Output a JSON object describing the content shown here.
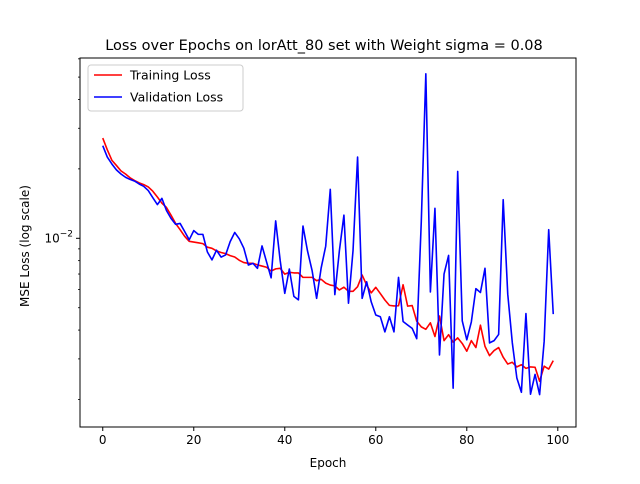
{
  "chart_data": {
    "type": "line",
    "title": "Loss over Epochs on lorAtt_80 set with Weight sigma = 0.08",
    "xlabel": "Epoch",
    "ylabel": "MSE Loss (log scale)",
    "xlim": [
      -5,
      104
    ],
    "ylim": [
      0.00152,
      0.0605
    ],
    "yscale": "log",
    "xticks": [
      0,
      20,
      40,
      60,
      80,
      100
    ],
    "yticks": [
      {
        "value": 0.01,
        "label": "10^-2"
      }
    ],
    "grid": false,
    "legend": {
      "placement": "top-left"
    },
    "x": [
      0,
      1,
      2,
      3,
      4,
      5,
      6,
      7,
      8,
      9,
      10,
      11,
      12,
      13,
      14,
      15,
      16,
      17,
      18,
      19,
      20,
      21,
      22,
      23,
      24,
      25,
      26,
      27,
      28,
      29,
      30,
      31,
      32,
      33,
      34,
      35,
      36,
      37,
      38,
      39,
      40,
      41,
      42,
      43,
      44,
      45,
      46,
      47,
      48,
      49,
      50,
      51,
      52,
      53,
      54,
      55,
      56,
      57,
      58,
      59,
      60,
      61,
      62,
      63,
      64,
      65,
      66,
      67,
      68,
      69,
      70,
      71,
      72,
      73,
      74,
      75,
      76,
      77,
      78,
      79,
      80,
      81,
      82,
      83,
      84,
      85,
      86,
      87,
      88,
      89,
      90,
      91,
      92,
      93,
      94,
      95,
      96,
      97,
      98,
      99
    ],
    "series": [
      {
        "name": "Training Loss",
        "color": "#ff0000",
        "values": [
          0.0272,
          0.0242,
          0.0218,
          0.0207,
          0.0196,
          0.019,
          0.0183,
          0.0178,
          0.0174,
          0.0171,
          0.0167,
          0.016,
          0.0151,
          0.0142,
          0.0136,
          0.0126,
          0.0116,
          0.0109,
          0.0102,
          0.0097,
          0.00963,
          0.00956,
          0.00948,
          0.00915,
          0.00905,
          0.00882,
          0.00868,
          0.00858,
          0.00841,
          0.0083,
          0.00803,
          0.00785,
          0.00779,
          0.00779,
          0.00767,
          0.00758,
          0.00749,
          0.00721,
          0.00737,
          0.00741,
          0.00699,
          0.00712,
          0.00708,
          0.00708,
          0.00677,
          0.00677,
          0.00677,
          0.00655,
          0.00664,
          0.00639,
          0.00627,
          0.00622,
          0.00597,
          0.00614,
          0.00589,
          0.00589,
          0.00617,
          0.00693,
          0.00627,
          0.0058,
          0.00613,
          0.00576,
          0.0054,
          0.00512,
          0.00509,
          0.0051,
          0.00629,
          0.00508,
          0.00511,
          0.00437,
          0.00413,
          0.00403,
          0.0043,
          0.00375,
          0.0046,
          0.0036,
          0.00382,
          0.00355,
          0.0037,
          0.0035,
          0.00324,
          0.0036,
          0.00336,
          0.0042,
          0.0034,
          0.0031,
          0.00326,
          0.00336,
          0.00305,
          0.00285,
          0.0029,
          0.00277,
          0.00283,
          0.00273,
          0.00277,
          0.00276,
          0.0024,
          0.00279,
          0.00271,
          0.00295
        ]
      },
      {
        "name": "Validation Loss",
        "color": "#0000ff",
        "values": [
          0.0252,
          0.0225,
          0.021,
          0.0198,
          0.019,
          0.0184,
          0.018,
          0.0177,
          0.0172,
          0.0168,
          0.0161,
          0.015,
          0.014,
          0.0149,
          0.0132,
          0.0122,
          0.0115,
          0.0116,
          0.0107,
          0.00985,
          0.0108,
          0.0104,
          0.0104,
          0.00872,
          0.00806,
          0.00888,
          0.00829,
          0.00847,
          0.00967,
          0.0106,
          0.00995,
          0.00906,
          0.00766,
          0.00779,
          0.00741,
          0.00927,
          0.0079,
          0.00674,
          0.0119,
          0.00798,
          0.00577,
          0.00736,
          0.0056,
          0.00541,
          0.0113,
          0.00881,
          0.00726,
          0.00549,
          0.00744,
          0.00925,
          0.0163,
          0.0057,
          0.00883,
          0.0126,
          0.00523,
          0.00885,
          0.0225,
          0.00549,
          0.00648,
          0.0053,
          0.00465,
          0.00457,
          0.00393,
          0.00457,
          0.00393,
          0.00677,
          0.00436,
          0.00421,
          0.00407,
          0.00367,
          0.0118,
          0.0517,
          0.00585,
          0.0135,
          0.00312,
          0.007,
          0.00843,
          0.00224,
          0.0195,
          0.00439,
          0.00363,
          0.00434,
          0.00605,
          0.00582,
          0.00741,
          0.00352,
          0.0036,
          0.00383,
          0.0147,
          0.00573,
          0.00353,
          0.00248,
          0.00215,
          0.00472,
          0.00211,
          0.00257,
          0.0021,
          0.00357,
          0.0109,
          0.00469
        ]
      }
    ]
  }
}
